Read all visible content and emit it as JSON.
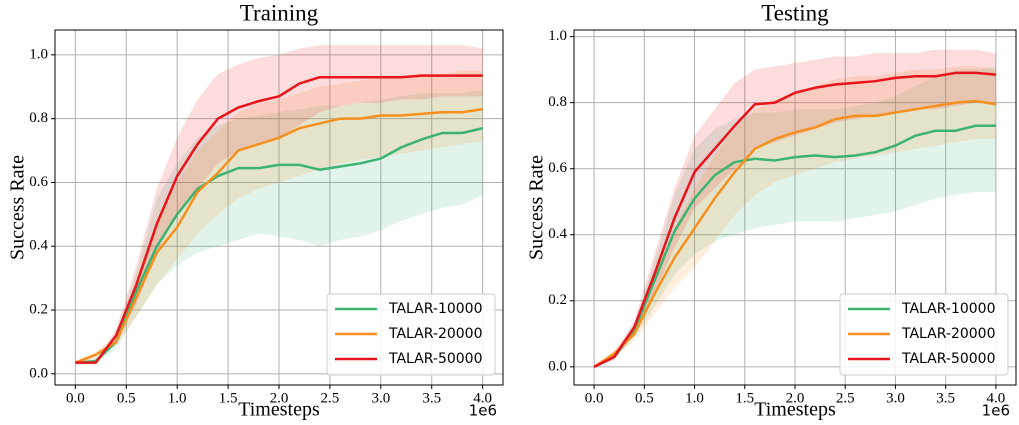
{
  "chart_data": [
    {
      "type": "line",
      "title": "Training",
      "xlabel": "Timesteps",
      "ylabel": "Success Rate",
      "x_offset_label": "1e6",
      "x": [
        0,
        0.2,
        0.4,
        0.6,
        0.8,
        1.0,
        1.2,
        1.4,
        1.6,
        1.8,
        2.0,
        2.2,
        2.4,
        2.6,
        2.8,
        3.0,
        3.2,
        3.4,
        3.6,
        3.8,
        4.0
      ],
      "xlim": [
        -0.2,
        4.2
      ],
      "ylim": [
        -0.035,
        1.078
      ],
      "xticks": [
        {
          "value": 0,
          "label": "0.0"
        },
        0.5,
        {
          "value": 1,
          "label": "1.0"
        },
        1.5,
        {
          "value": 2,
          "label": "2.0"
        },
        2.5,
        {
          "value": 3,
          "label": "3.0"
        },
        3.5,
        {
          "value": 4,
          "label": "4.0"
        }
      ],
      "yticks": [
        {
          "value": 0,
          "label": "0.0"
        },
        0.2,
        0.4,
        0.6,
        0.8,
        {
          "value": 1,
          "label": "1.0"
        }
      ],
      "grid": true,
      "legend": "lower right",
      "series": [
        {
          "name": "TALAR-10000",
          "color": "#3cb371",
          "values": [
            0.035,
            0.04,
            0.1,
            0.26,
            0.4,
            0.5,
            0.58,
            0.62,
            0.645,
            0.645,
            0.655,
            0.655,
            0.64,
            0.65,
            0.66,
            0.675,
            0.71,
            0.735,
            0.755,
            0.755,
            0.77
          ],
          "lower": [
            0.03,
            0.03,
            0.08,
            0.18,
            0.28,
            0.34,
            0.38,
            0.4,
            0.42,
            0.44,
            0.43,
            0.42,
            0.4,
            0.42,
            0.43,
            0.45,
            0.48,
            0.5,
            0.52,
            0.53,
            0.56
          ],
          "upper": [
            0.04,
            0.05,
            0.12,
            0.32,
            0.55,
            0.66,
            0.74,
            0.78,
            0.8,
            0.81,
            0.82,
            0.83,
            0.84,
            0.84,
            0.85,
            0.86,
            0.87,
            0.88,
            0.88,
            0.88,
            0.89
          ]
        },
        {
          "name": "TALAR-20000",
          "color": "#f5901e",
          "values": [
            0.035,
            0.06,
            0.1,
            0.24,
            0.38,
            0.46,
            0.57,
            0.63,
            0.7,
            0.72,
            0.74,
            0.77,
            0.785,
            0.8,
            0.8,
            0.81,
            0.81,
            0.815,
            0.82,
            0.82,
            0.83
          ],
          "lower": [
            0.03,
            0.05,
            0.09,
            0.18,
            0.28,
            0.36,
            0.44,
            0.5,
            0.55,
            0.58,
            0.6,
            0.62,
            0.64,
            0.66,
            0.67,
            0.68,
            0.69,
            0.7,
            0.71,
            0.72,
            0.73
          ],
          "upper": [
            0.04,
            0.07,
            0.12,
            0.3,
            0.48,
            0.6,
            0.7,
            0.76,
            0.82,
            0.85,
            0.86,
            0.88,
            0.9,
            0.91,
            0.92,
            0.93,
            0.93,
            0.94,
            0.94,
            0.95,
            0.95
          ]
        },
        {
          "name": "TALAR-50000",
          "color": "#e8141c",
          "values": [
            0.035,
            0.035,
            0.12,
            0.28,
            0.47,
            0.62,
            0.72,
            0.8,
            0.835,
            0.855,
            0.87,
            0.91,
            0.93,
            0.93,
            0.93,
            0.93,
            0.93,
            0.935,
            0.935,
            0.935,
            0.935
          ],
          "lower": [
            0.03,
            0.03,
            0.1,
            0.22,
            0.38,
            0.5,
            0.58,
            0.66,
            0.7,
            0.72,
            0.74,
            0.78,
            0.82,
            0.84,
            0.85,
            0.85,
            0.86,
            0.86,
            0.87,
            0.87,
            0.87
          ],
          "upper": [
            0.04,
            0.04,
            0.14,
            0.34,
            0.58,
            0.74,
            0.86,
            0.94,
            0.97,
            0.99,
            1.0,
            1.02,
            1.03,
            1.03,
            1.03,
            1.03,
            1.03,
            1.03,
            1.03,
            1.03,
            1.02
          ]
        }
      ]
    },
    {
      "type": "line",
      "title": "Testing",
      "xlabel": "Timesteps",
      "ylabel": "Success Rate",
      "x_offset_label": "1e6",
      "x": [
        0,
        0.2,
        0.4,
        0.6,
        0.8,
        1.0,
        1.2,
        1.4,
        1.6,
        1.8,
        2.0,
        2.2,
        2.4,
        2.6,
        2.8,
        3.0,
        3.2,
        3.4,
        3.6,
        3.8,
        4.0
      ],
      "xlim": [
        -0.2,
        4.2
      ],
      "ylim": [
        -0.055,
        1.02
      ],
      "xticks": [
        {
          "value": 0,
          "label": "0.0"
        },
        0.5,
        {
          "value": 1,
          "label": "1.0"
        },
        1.5,
        {
          "value": 2,
          "label": "2.0"
        },
        2.5,
        {
          "value": 3,
          "label": "3.0"
        },
        3.5,
        {
          "value": 4,
          "label": "4.0"
        }
      ],
      "yticks": [
        {
          "value": 0,
          "label": "0.0"
        },
        0.2,
        0.4,
        0.6,
        0.8,
        {
          "value": 1,
          "label": "1.0"
        }
      ],
      "grid": true,
      "legend": "lower right",
      "series": [
        {
          "name": "TALAR-10000",
          "color": "#3cb371",
          "values": [
            0,
            0.03,
            0.11,
            0.26,
            0.41,
            0.51,
            0.58,
            0.62,
            0.63,
            0.625,
            0.635,
            0.64,
            0.635,
            0.64,
            0.65,
            0.67,
            0.7,
            0.715,
            0.715,
            0.73,
            0.73
          ],
          "lower": [
            0,
            0.02,
            0.09,
            0.18,
            0.28,
            0.34,
            0.38,
            0.4,
            0.42,
            0.43,
            0.44,
            0.44,
            0.44,
            0.45,
            0.46,
            0.47,
            0.49,
            0.51,
            0.52,
            0.53,
            0.53
          ],
          "upper": [
            0,
            0.04,
            0.13,
            0.32,
            0.52,
            0.66,
            0.72,
            0.75,
            0.77,
            0.77,
            0.78,
            0.78,
            0.78,
            0.79,
            0.8,
            0.82,
            0.85,
            0.88,
            0.9,
            0.9,
            0.91
          ]
        },
        {
          "name": "TALAR-20000",
          "color": "#f5901e",
          "values": [
            0,
            0.04,
            0.1,
            0.22,
            0.33,
            0.42,
            0.51,
            0.59,
            0.66,
            0.69,
            0.71,
            0.725,
            0.75,
            0.76,
            0.76,
            0.77,
            0.78,
            0.79,
            0.8,
            0.805,
            0.795
          ],
          "lower": [
            0,
            0.03,
            0.08,
            0.16,
            0.24,
            0.3,
            0.38,
            0.46,
            0.52,
            0.56,
            0.58,
            0.6,
            0.62,
            0.63,
            0.64,
            0.65,
            0.66,
            0.67,
            0.68,
            0.69,
            0.69
          ],
          "upper": [
            0,
            0.05,
            0.12,
            0.28,
            0.42,
            0.54,
            0.64,
            0.72,
            0.78,
            0.81,
            0.83,
            0.85,
            0.87,
            0.88,
            0.88,
            0.89,
            0.9,
            0.9,
            0.91,
            0.91,
            0.9
          ]
        },
        {
          "name": "TALAR-50000",
          "color": "#e8141c",
          "values": [
            0,
            0.03,
            0.12,
            0.28,
            0.45,
            0.59,
            0.66,
            0.73,
            0.795,
            0.8,
            0.83,
            0.845,
            0.855,
            0.86,
            0.865,
            0.875,
            0.88,
            0.88,
            0.89,
            0.89,
            0.885
          ],
          "lower": [
            0,
            0.02,
            0.1,
            0.22,
            0.36,
            0.48,
            0.54,
            0.6,
            0.66,
            0.68,
            0.7,
            0.72,
            0.74,
            0.75,
            0.76,
            0.77,
            0.78,
            0.78,
            0.79,
            0.8,
            0.8
          ],
          "upper": [
            0,
            0.04,
            0.14,
            0.34,
            0.54,
            0.7,
            0.78,
            0.86,
            0.9,
            0.91,
            0.92,
            0.93,
            0.94,
            0.94,
            0.95,
            0.95,
            0.95,
            0.96,
            0.96,
            0.96,
            0.95
          ]
        }
      ]
    }
  ]
}
